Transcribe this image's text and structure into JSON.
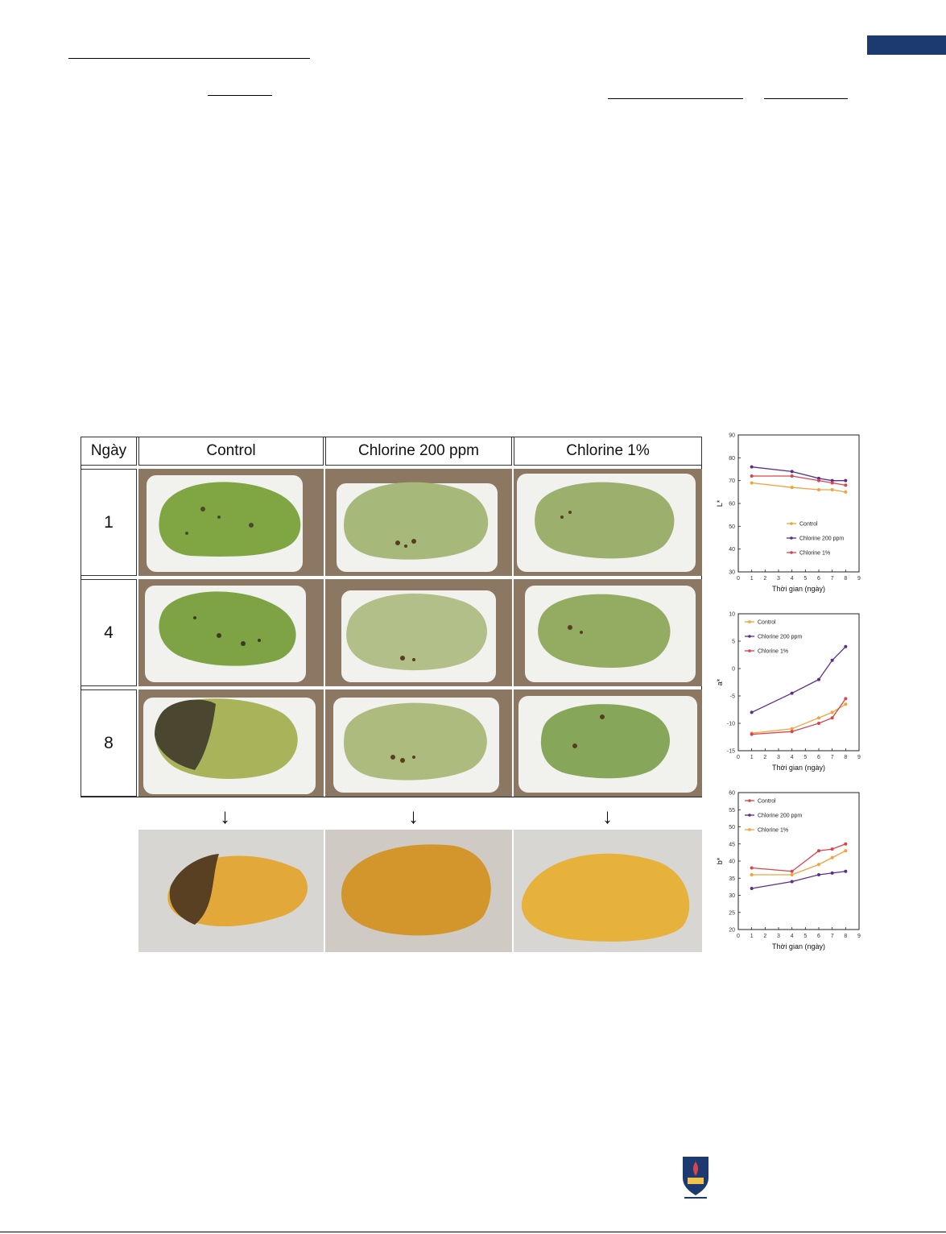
{
  "table": {
    "header_day": "Ngày",
    "columns": [
      "Control",
      "Chlorine 200 ppm",
      "Chlorine 1%"
    ],
    "days": [
      "1",
      "4",
      "8"
    ]
  },
  "colors": {
    "control": "#f2a23a",
    "chlorine_200ppm": "#5b2d8e",
    "chlorine_1pct": "#d9434b",
    "navy_bar": "#1c3a70",
    "tray_bg": "#8c7763"
  },
  "chart_data": [
    {
      "type": "line",
      "xlabel": "Thời gian (ngày)",
      "ylabel": "L*",
      "xlim": [
        0,
        9
      ],
      "ylim": [
        30,
        90
      ],
      "xticks": [
        "0",
        "1",
        "2",
        "3",
        "4",
        "5",
        "6",
        "7",
        "8",
        "9"
      ],
      "yticks": [
        "30",
        "40",
        "50",
        "60",
        "70",
        "80",
        "90"
      ],
      "legend_position": "bottom-right",
      "x": [
        1,
        4,
        6,
        7,
        8
      ],
      "series": [
        {
          "name": "Control",
          "color": "#f2a23a",
          "values": [
            69,
            67,
            66,
            66,
            65
          ]
        },
        {
          "name": "Chlorine 200 ppm",
          "color": "#5b2d8e",
          "values": [
            76,
            74,
            71,
            70,
            70
          ]
        },
        {
          "name": "Chlorine 1%",
          "color": "#d9434b",
          "values": [
            72,
            72,
            70,
            69,
            68
          ]
        }
      ]
    },
    {
      "type": "line",
      "xlabel": "Thời gian (ngày)",
      "ylabel": "a*",
      "xlim": [
        0,
        9
      ],
      "ylim": [
        -15,
        10
      ],
      "xticks": [
        "0",
        "1",
        "2",
        "3",
        "4",
        "5",
        "6",
        "7",
        "8",
        "9"
      ],
      "yticks": [
        "-15",
        "-10",
        "-5",
        "0",
        "5",
        "10"
      ],
      "legend_position": "top-left",
      "x": [
        1,
        4,
        6,
        7,
        8
      ],
      "series": [
        {
          "name": "Control",
          "color": "#f2a23a",
          "values": [
            -11.8,
            -11,
            -9,
            -8,
            -6.5
          ]
        },
        {
          "name": "Chlorine 200 ppm",
          "color": "#5b2d8e",
          "values": [
            -8,
            -4.5,
            -2,
            1.5,
            4
          ]
        },
        {
          "name": "Chlorine 1%",
          "color": "#d9434b",
          "values": [
            -12,
            -11.5,
            -10,
            -9,
            -5.5
          ]
        }
      ]
    },
    {
      "type": "line",
      "xlabel": "Thời gian (ngày)",
      "ylabel": "b*",
      "xlim": [
        0,
        9
      ],
      "ylim": [
        20,
        60
      ],
      "xticks": [
        "0",
        "1",
        "2",
        "3",
        "4",
        "5",
        "6",
        "7",
        "8",
        "9"
      ],
      "yticks": [
        "20",
        "25",
        "30",
        "35",
        "40",
        "45",
        "50",
        "55",
        "60"
      ],
      "legend_position": "top-left",
      "x": [
        1,
        4,
        6,
        7,
        8
      ],
      "series": [
        {
          "name": "Control",
          "color": "#d9434b",
          "values": [
            38,
            37,
            43,
            43.5,
            45
          ]
        },
        {
          "name": "Chlorine 200 ppm",
          "color": "#5b2d8e",
          "values": [
            32,
            34,
            36,
            36.5,
            37
          ]
        },
        {
          "name": "Chlorine 1%",
          "color": "#f2a23a",
          "values": [
            36,
            36,
            39,
            41,
            43
          ]
        }
      ]
    }
  ]
}
